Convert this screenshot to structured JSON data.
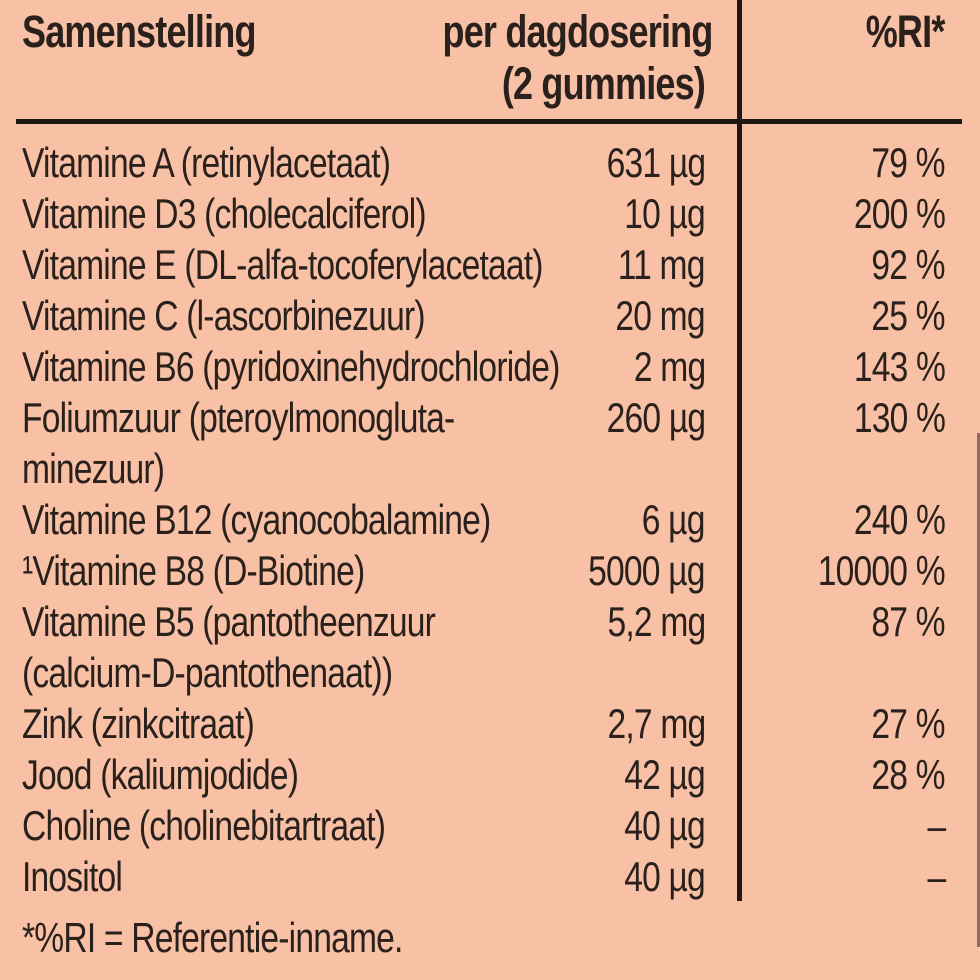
{
  "label": {
    "header": {
      "composition": "Samenstelling",
      "dose_line1": "per dagdosering",
      "dose_line2": "(2 gummies)",
      "ri": "%RI*"
    },
    "rows": [
      {
        "name": "Vitamine A (retinylacetaat)",
        "amount": "631 µg",
        "ri": "79 %"
      },
      {
        "name": "Vitamine D3 (cholecalciferol)",
        "amount": "10 µg",
        "ri": "200 %"
      },
      {
        "name": "Vitamine E (DL-alfa-tocoferylacetaat)",
        "amount": "11 mg",
        "ri": "92 %"
      },
      {
        "name": "Vitamine C (l-ascorbinezuur)",
        "amount": "20 mg",
        "ri": "25 %"
      },
      {
        "name": "Vitamine B6 (pyridoxinehydrochloride)",
        "amount": "2 mg",
        "ri": "143 %"
      },
      {
        "name": "Foliumzuur (pteroylmonogluta-",
        "amount": "260 µg",
        "ri": "130 %"
      },
      {
        "name": "minezuur)",
        "amount": "",
        "ri": ""
      },
      {
        "name": "Vitamine B12 (cyanocobalamine)",
        "amount": "6 µg",
        "ri": "240 %"
      },
      {
        "name": "¹Vitamine B8 (D-Biotine)",
        "amount": "5000 µg",
        "ri": "10000 %"
      },
      {
        "name": "Vitamine B5 (pantotheenzuur",
        "amount": "5,2 mg",
        "ri": "87 %"
      },
      {
        "name": "(calcium-D-pantothenaat))",
        "amount": "",
        "ri": ""
      },
      {
        "name": "Zink (zinkcitraat)",
        "amount": "2,7 mg",
        "ri": "27 %"
      },
      {
        "name": "Jood (kaliumjodide)",
        "amount": "42 µg",
        "ri": "28 %"
      },
      {
        "name": "Choline (cholinebitartraat)",
        "amount": "40 µg",
        "ri": "–"
      },
      {
        "name": "Inositol",
        "amount": "40 µg",
        "ri": "–"
      }
    ],
    "footnote": "*%RI = Referentie-inname.",
    "colors": {
      "background": "#f8c1a6",
      "text": "#2a211c",
      "rule": "#1d1815"
    }
  }
}
